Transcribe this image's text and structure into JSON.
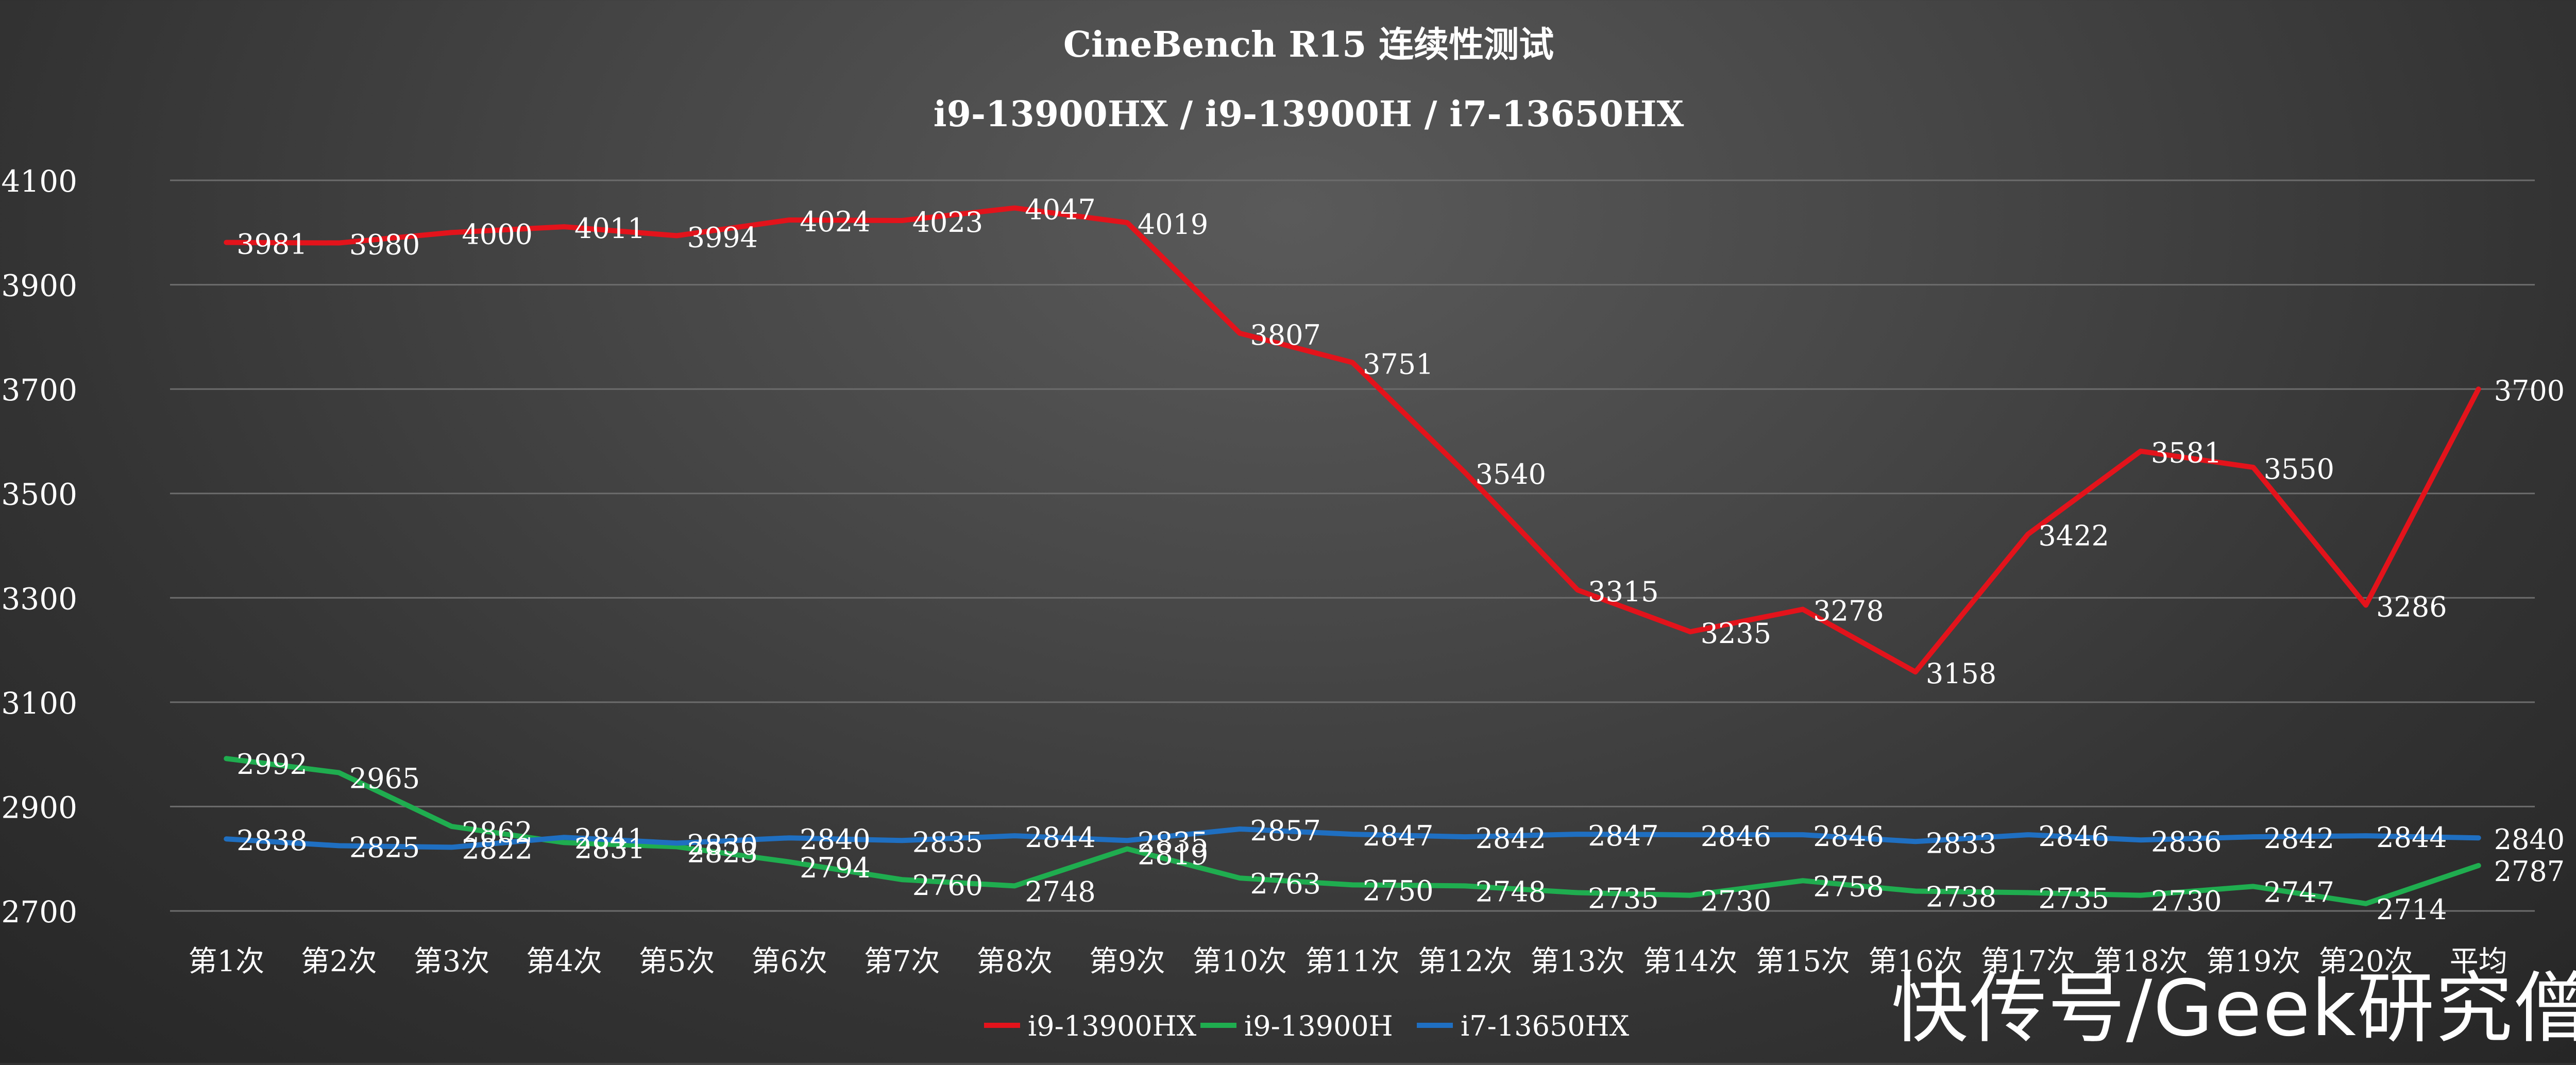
{
  "chart_data": {
    "type": "line",
    "title": "CineBench R15 连续性测试",
    "subtitle": "i9-13900HX / i9-13900H / i7-13650HX",
    "xlabel": "",
    "ylabel": "",
    "categories": [
      "第1次",
      "第2次",
      "第3次",
      "第4次",
      "第5次",
      "第6次",
      "第7次",
      "第8次",
      "第9次",
      "第10次",
      "第11次",
      "第12次",
      "第13次",
      "第14次",
      "第15次",
      "第16次",
      "第17次",
      "第18次",
      "第19次",
      "第20次",
      "平均"
    ],
    "ylim": [
      2700,
      4100
    ],
    "yticks": [
      2700,
      2900,
      3100,
      3300,
      3500,
      3700,
      3900,
      4100
    ],
    "grid": true,
    "legend_position": "bottom-center",
    "series": [
      {
        "name": "i9-13900HX",
        "color": "#e3131b",
        "values": [
          3981,
          3980,
          4000,
          4011,
          3994,
          4024,
          4023,
          4047,
          4019,
          3807,
          3751,
          3540,
          3315,
          3235,
          3278,
          3158,
          3422,
          3581,
          3550,
          3286,
          3700
        ]
      },
      {
        "name": "i9-13900H",
        "color": "#1fad4f",
        "values": [
          2992,
          2965,
          2862,
          2831,
          2823,
          2794,
          2760,
          2748,
          2819,
          2763,
          2750,
          2748,
          2735,
          2730,
          2758,
          2738,
          2735,
          2730,
          2747,
          2714,
          2787
        ]
      },
      {
        "name": "i7-13650HX",
        "color": "#1f6fc1",
        "values": [
          2838,
          2825,
          2822,
          2841,
          2830,
          2840,
          2835,
          2844,
          2835,
          2857,
          2847,
          2842,
          2847,
          2846,
          2846,
          2833,
          2846,
          2836,
          2842,
          2844,
          2840
        ]
      }
    ]
  },
  "watermark": "快传号/Geek研究僧"
}
